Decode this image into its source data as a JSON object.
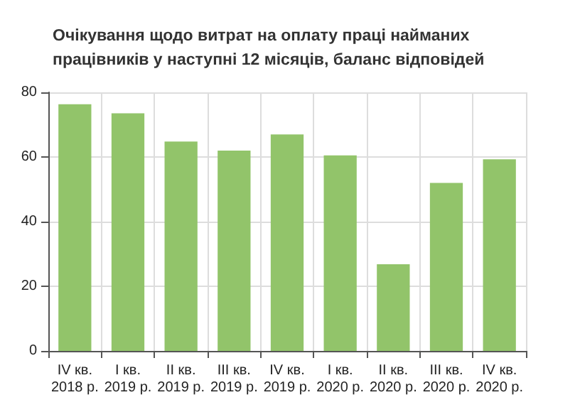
{
  "chart_data": {
    "type": "bar",
    "title": "Очікування щодо витрат на оплату праці найманих\nпрацівників у наступні 12 місяців, баланс відповідей",
    "categories": [
      "IV кв.\n2018 р.",
      "I кв.\n2019 р.",
      "II кв.\n2019 р.",
      "III кв.\n2019 р.",
      "IV кв.\n2019 р.",
      "I кв.\n2020 р.",
      "II кв.\n2020 р.",
      "III кв.\n2020 р.",
      "IV кв.\n2020 р."
    ],
    "values": [
      76.3,
      73.5,
      64.8,
      62,
      67,
      60.5,
      26.8,
      52,
      59.3
    ],
    "color": "#92c46a",
    "ylim": [
      0,
      80
    ],
    "yticks": [
      0,
      20,
      40,
      60,
      80
    ],
    "grid": true
  }
}
